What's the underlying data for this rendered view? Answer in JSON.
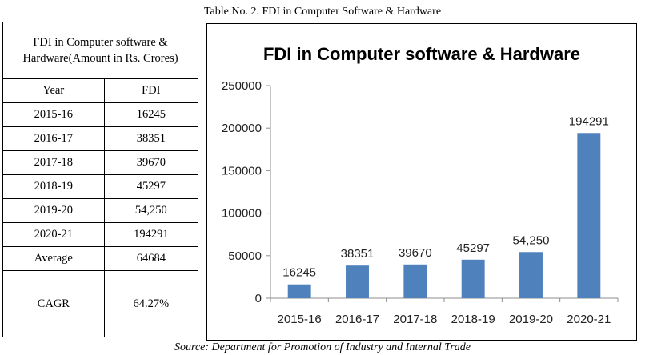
{
  "caption": "Table No. 2. FDI in Computer Software & Hardware",
  "source": "Source: Department for Promotion of Industry and Internal Trade",
  "table": {
    "header": "FDI in Computer software & Hardware(Amount in Rs. Crores)",
    "col_year": "Year",
    "col_fdi": "FDI",
    "rows": [
      {
        "year": "2015-16",
        "fdi": "16245"
      },
      {
        "year": "2016-17",
        "fdi": "38351"
      },
      {
        "year": "2017-18",
        "fdi": "39670"
      },
      {
        "year": "2018-19",
        "fdi": "45297"
      },
      {
        "year": "2019-20",
        "fdi": "54,250"
      },
      {
        "year": "2020-21",
        "fdi": "194291"
      }
    ],
    "average_label": "Average",
    "average_value": "64684",
    "cagr_label": "CAGR",
    "cagr_value": "64.27%"
  },
  "chart_data": {
    "type": "bar",
    "title": "FDI in Computer software & Hardware",
    "categories": [
      "2015-16",
      "2016-17",
      "2017-18",
      "2018-19",
      "2019-20",
      "2020-21"
    ],
    "values": [
      16245,
      38351,
      39670,
      45297,
      54250,
      194291
    ],
    "data_labels": [
      "16245",
      "38351",
      "39670",
      "45297",
      "54,250",
      "194291"
    ],
    "ylim": [
      0,
      250000
    ],
    "yticks": [
      0,
      50000,
      100000,
      150000,
      200000,
      250000
    ],
    "ytick_labels": [
      "0",
      "50000",
      "100000",
      "150000",
      "200000",
      "250000"
    ],
    "xlabel": "",
    "ylabel": "",
    "grid": false,
    "legend": "none",
    "bar_color": "#4f81bd"
  }
}
